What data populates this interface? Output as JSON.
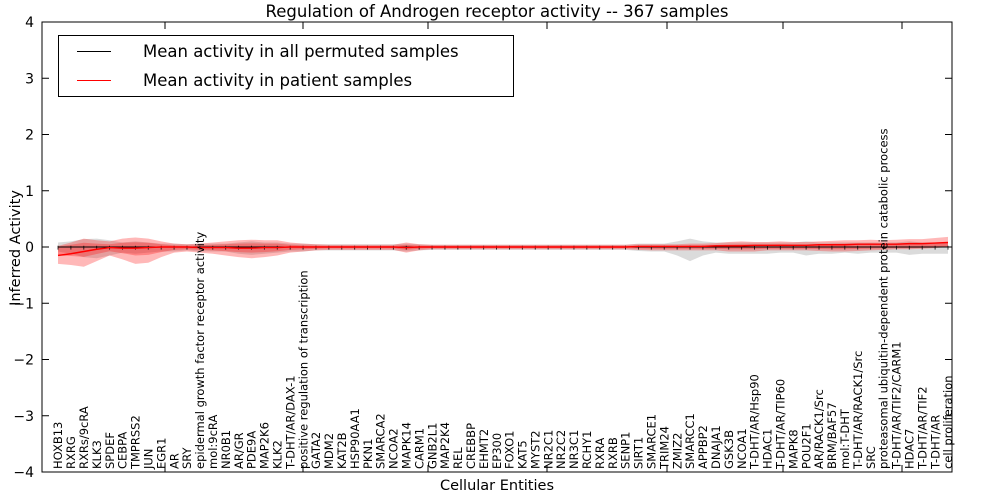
{
  "figure": {
    "title": "Regulation of Androgen receptor activity -- 367 samples",
    "xlabel": "Cellular Entities",
    "ylabel": "Inferred Activity"
  },
  "colors": {
    "permuted_line": "#000000",
    "patient_line": "#ff0000",
    "permuted_band": "#999999",
    "patient_band": "#ff0000",
    "axis": "#000000"
  },
  "chart_data": {
    "type": "line",
    "title": "Regulation of Androgen receptor activity -- 367 samples",
    "xlabel": "Cellular Entities",
    "ylabel": "Inferred Activity",
    "ylim": [
      -4,
      4
    ],
    "yticks": [
      -4,
      -3,
      -2,
      -1,
      0,
      1,
      2,
      3,
      4
    ],
    "ytick_labels": [
      "−4",
      "−3",
      "−2",
      "−1",
      "0",
      "1",
      "2",
      "3",
      "4"
    ],
    "grid": false,
    "legend_position": "upper left",
    "categories": [
      "HOXB13",
      "RXRG",
      "RXRs/9cRA",
      "KLK3",
      "SPDEF",
      "CEBPA",
      "TMPRSS2",
      "JUN",
      "EGR1",
      "AR",
      "SRY",
      "epidermal growth factor receptor activity",
      "mol:9cRA",
      "NR0B1",
      "AR/GR",
      "PDE9A",
      "MAP2K6",
      "KLK2",
      "T-DHT/AR/DAX-1",
      "positive regulation of transcription",
      "GATA2",
      "MDM2",
      "KAT2B",
      "HSP90AA1",
      "PKN1",
      "SMARCA2",
      "NCOA2",
      "MAPK14",
      "CARM1",
      "GNB2L1",
      "MAP2K4",
      "REL",
      "CREBBP",
      "EHMT2",
      "EP300",
      "FOXO1",
      "KAT5",
      "MYST2",
      "NR2C1",
      "NR2C2",
      "NR3C1",
      "RCHY1",
      "RXRA",
      "RXRB",
      "SENP1",
      "SIRT1",
      "SMARCE1",
      "TRIM24",
      "ZMIZ2",
      "SMARCC1",
      "APPBP2",
      "DNAJA1",
      "GSK3B",
      "NCOA1",
      "T-DHT/AR/Hsp90",
      "HDAC1",
      "T-DHT/AR/TIP60",
      "MAPK8",
      "POU2F1",
      "AR/RACK1/Src",
      "BRM/BAF57",
      "mol:T-DHT",
      "T-DHT/AR/RACK1/Src",
      "SRC",
      "proteasomal ubiquitin-dependent protein catabolic process",
      "T-DHT/AR/TIF2/CARM1",
      "HDAC7",
      "T-DHT/AR/TIF2",
      "T-DHT/AR",
      "cell proliferation"
    ],
    "series": [
      {
        "name": "Mean activity in all permuted samples",
        "color": "#000000",
        "values": [
          0,
          0,
          0,
          0,
          0,
          0,
          0,
          0,
          0,
          0,
          0,
          0,
          0,
          0,
          0,
          0,
          0,
          0,
          0,
          0,
          0,
          0,
          0,
          0,
          0,
          0,
          0,
          0,
          0,
          0,
          0,
          0,
          0,
          0,
          0,
          0,
          0,
          0,
          0,
          0,
          0,
          0,
          0,
          0,
          0,
          0,
          0,
          0,
          0,
          0,
          0,
          0,
          0,
          0,
          0,
          0,
          0,
          0,
          0,
          0,
          0,
          0,
          0,
          0,
          0,
          0,
          0,
          0,
          0,
          0
        ],
        "band_upper": [
          0.08,
          0.1,
          0.14,
          0.15,
          0.12,
          0.08,
          0.1,
          0.08,
          0.06,
          0.06,
          0.05,
          0.06,
          0.06,
          0.06,
          0.08,
          0.1,
          0.08,
          0.08,
          0.06,
          0.06,
          0.05,
          0.05,
          0.05,
          0.05,
          0.05,
          0.05,
          0.05,
          0.06,
          0.05,
          0.04,
          0.04,
          0.04,
          0.04,
          0.04,
          0.04,
          0.04,
          0.04,
          0.04,
          0.04,
          0.04,
          0.04,
          0.04,
          0.04,
          0.04,
          0.04,
          0.06,
          0.06,
          0.06,
          0.1,
          0.15,
          0.1,
          0.08,
          0.08,
          0.08,
          0.08,
          0.08,
          0.08,
          0.08,
          0.1,
          0.08,
          0.08,
          0.08,
          0.08,
          0.08,
          0.08,
          0.08,
          0.1,
          0.08,
          0.08,
          0.08
        ],
        "band_lower": [
          -0.08,
          -0.12,
          -0.18,
          -0.2,
          -0.15,
          -0.1,
          -0.12,
          -0.1,
          -0.08,
          -0.08,
          -0.06,
          -0.08,
          -0.08,
          -0.08,
          -0.12,
          -0.14,
          -0.12,
          -0.1,
          -0.08,
          -0.08,
          -0.06,
          -0.06,
          -0.06,
          -0.06,
          -0.06,
          -0.06,
          -0.06,
          -0.08,
          -0.06,
          -0.05,
          -0.05,
          -0.05,
          -0.05,
          -0.05,
          -0.05,
          -0.05,
          -0.05,
          -0.05,
          -0.05,
          -0.05,
          -0.05,
          -0.05,
          -0.05,
          -0.05,
          -0.05,
          -0.07,
          -0.08,
          -0.08,
          -0.15,
          -0.25,
          -0.15,
          -0.1,
          -0.12,
          -0.12,
          -0.12,
          -0.12,
          -0.1,
          -0.1,
          -0.15,
          -0.12,
          -0.12,
          -0.1,
          -0.12,
          -0.1,
          -0.1,
          -0.1,
          -0.14,
          -0.12,
          -0.12,
          -0.12
        ]
      },
      {
        "name": "Mean activity in patient samples",
        "color": "#ff0000",
        "values": [
          -0.15,
          -0.12,
          -0.08,
          -0.04,
          -0.01,
          -0.02,
          -0.02,
          -0.01,
          0,
          0,
          0,
          -0.01,
          -0.01,
          -0.01,
          -0.02,
          -0.02,
          -0.01,
          -0.01,
          0,
          0,
          0,
          0,
          0,
          0,
          0,
          0,
          0,
          -0.01,
          0,
          0,
          0,
          0,
          0,
          0,
          0,
          0,
          0,
          0,
          0,
          0,
          0,
          0,
          0,
          0,
          0,
          0.01,
          0.01,
          0.01,
          0.01,
          0.01,
          0.01,
          0.02,
          0.02,
          0.02,
          0.03,
          0.03,
          0.03,
          0.03,
          0.03,
          0.04,
          0.04,
          0.04,
          0.05,
          0.05,
          0.05,
          0.05,
          0.06,
          0.06,
          0.07,
          0.08
        ],
        "band_upper": [
          0.02,
          0.08,
          0.15,
          0.12,
          0.1,
          0.15,
          0.17,
          0.15,
          0.1,
          0.06,
          0.05,
          0.06,
          0.08,
          0.1,
          0.12,
          0.13,
          0.12,
          0.12,
          0.08,
          0.06,
          0.05,
          0.04,
          0.04,
          0.04,
          0.04,
          0.04,
          0.04,
          0.08,
          0.05,
          0.04,
          0.04,
          0.04,
          0.04,
          0.04,
          0.04,
          0.04,
          0.04,
          0.04,
          0.04,
          0.04,
          0.04,
          0.04,
          0.04,
          0.04,
          0.04,
          0.05,
          0.05,
          0.05,
          0.05,
          0.06,
          0.06,
          0.07,
          0.09,
          0.1,
          0.09,
          0.09,
          0.1,
          0.09,
          0.09,
          0.1,
          0.11,
          0.12,
          0.12,
          0.13,
          0.12,
          0.13,
          0.14,
          0.14,
          0.16,
          0.18
        ],
        "band_lower": [
          -0.3,
          -0.32,
          -0.35,
          -0.25,
          -0.15,
          -0.22,
          -0.3,
          -0.28,
          -0.18,
          -0.1,
          -0.08,
          -0.1,
          -0.12,
          -0.15,
          -0.18,
          -0.2,
          -0.18,
          -0.15,
          -0.1,
          -0.08,
          -0.06,
          -0.05,
          -0.05,
          -0.05,
          -0.05,
          -0.05,
          -0.05,
          -0.1,
          -0.06,
          -0.04,
          -0.04,
          -0.04,
          -0.04,
          -0.04,
          -0.04,
          -0.04,
          -0.04,
          -0.04,
          -0.04,
          -0.04,
          -0.04,
          -0.04,
          -0.04,
          -0.04,
          -0.04,
          -0.05,
          -0.06,
          -0.06,
          -0.06,
          -0.06,
          -0.06,
          -0.06,
          -0.08,
          -0.08,
          -0.08,
          -0.06,
          -0.06,
          -0.06,
          -0.06,
          -0.07,
          -0.08,
          -0.08,
          -0.07,
          -0.06,
          -0.05,
          -0.04,
          -0.04,
          -0.03,
          -0.02,
          0.0
        ]
      }
    ]
  }
}
